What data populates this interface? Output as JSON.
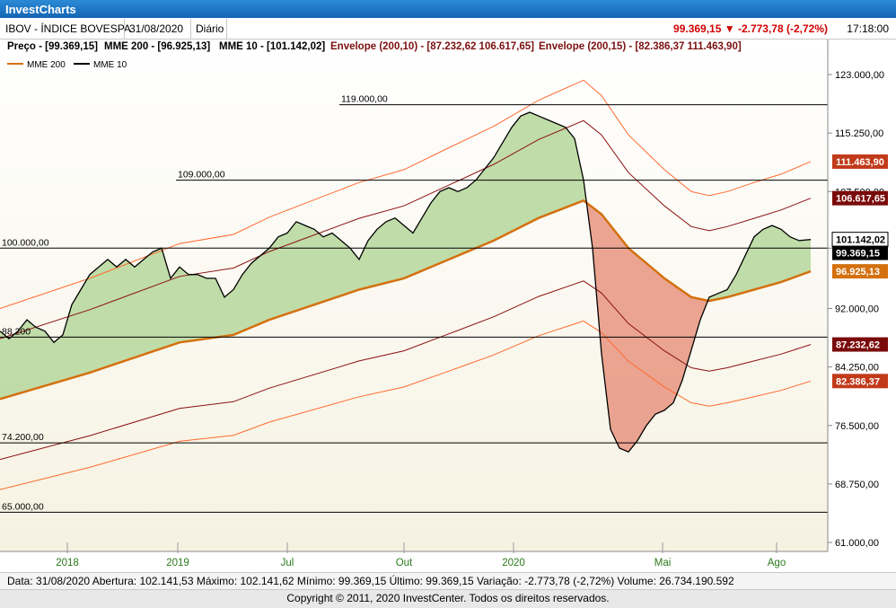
{
  "app": {
    "title": "InvestCharts"
  },
  "header": {
    "symbol": "IBOV - ÍNDICE BOVESPA",
    "date": "31/08/2020",
    "period": "Diário",
    "quote": "99.369,15 ▼ -2.773,78 (-2,72%)",
    "time": "17:18:00"
  },
  "indicators_line": {
    "price": "Preço - [99.369,15]",
    "mme200": "MME 200 - [96.925,13]",
    "mme10": "MME 10 - [101.142,02]",
    "env10": "Envelope (200,10) - [87.232,62  106.617,65]",
    "env15": "Envelope (200,15) - [82.386,37  111.463,90]"
  },
  "legend": {
    "mme200": "MME 200",
    "mme10": "MME 10"
  },
  "statusbar": {
    "text": "Data: 31/08/2020  Abertura: 102.141,53  Máximo: 102.141,62  Mínimo: 99.369,15  Último: 99.369,15  Variação: -2.773,78 (-2,72%)  Volume: 26.734.190.592"
  },
  "footer": {
    "text": "Copyright © 2011, 2020  InvestCenter. Todos os direitos reservados."
  },
  "colors": {
    "mme200": "#d4700e",
    "mme10": "#000000",
    "env10": "#8b1010",
    "env15": "#ff6a2e",
    "fill_up": "#b9d8a0",
    "fill_down": "#e89a86",
    "price_badge": "#a01010",
    "accent_badge": "#d4700e"
  },
  "chart_data": {
    "type": "line",
    "title": "",
    "x_ticks": [
      "2018",
      "2019",
      "Jul",
      "Out",
      "2020",
      "Mai",
      "Ago"
    ],
    "y_ticks": [
      "123.000,00",
      "115.250,00",
      "107.500,00",
      "100.000,00",
      "92.000,00",
      "84.250,00",
      "76.500,00",
      "68.750,00",
      "61.000,00"
    ],
    "ylim": [
      61000,
      123000
    ],
    "horizontal_lines": [
      {
        "value": 119000,
        "label": "119.000,00"
      },
      {
        "value": 109000,
        "label": "109.000,00"
      },
      {
        "value": 100000,
        "label": "100.000,00"
      },
      {
        "value": 88200,
        "label": "88.200"
      },
      {
        "value": 74200,
        "label": "74.200,00"
      },
      {
        "value": 65000,
        "label": "65.000,00"
      }
    ],
    "right_labels": [
      {
        "value": 111463.9,
        "text": "111.463,90",
        "kind": "env15"
      },
      {
        "value": 106617.65,
        "text": "106.617,65",
        "kind": "env10"
      },
      {
        "value": 101142.02,
        "text": "101.142,02",
        "kind": "mme10"
      },
      {
        "value": 99369.15,
        "text": "99.369,15",
        "kind": "price"
      },
      {
        "value": 96925.13,
        "text": "96.925,13",
        "kind": "mme200"
      },
      {
        "value": 87232.62,
        "text": "87.232,62",
        "kind": "env10"
      },
      {
        "value": 82386.37,
        "text": "82.386,37",
        "kind": "env15"
      }
    ],
    "series": [
      {
        "name": "MME 10",
        "values": [
          [
            0,
            89000
          ],
          [
            10,
            88000
          ],
          [
            20,
            89000
          ],
          [
            30,
            90500
          ],
          [
            40,
            89500
          ],
          [
            50,
            89000
          ],
          [
            60,
            87500
          ],
          [
            70,
            88500
          ],
          [
            80,
            92500
          ],
          [
            90,
            94500
          ],
          [
            100,
            96500
          ],
          [
            110,
            97500
          ],
          [
            120,
            98500
          ],
          [
            130,
            97500
          ],
          [
            140,
            98500
          ],
          [
            150,
            97500
          ],
          [
            160,
            98500
          ],
          [
            170,
            99500
          ],
          [
            180,
            100000
          ],
          [
            190,
            96000
          ],
          [
            200,
            97500
          ],
          [
            210,
            96500
          ],
          [
            220,
            96500
          ],
          [
            230,
            96000
          ],
          [
            240,
            96000
          ],
          [
            250,
            93500
          ],
          [
            260,
            94500
          ],
          [
            270,
            96500
          ],
          [
            280,
            98000
          ],
          [
            290,
            99000
          ],
          [
            300,
            100000
          ],
          [
            310,
            101500
          ],
          [
            320,
            102000
          ],
          [
            330,
            103500
          ],
          [
            340,
            103000
          ],
          [
            350,
            102500
          ],
          [
            360,
            101500
          ],
          [
            370,
            102000
          ],
          [
            380,
            101000
          ],
          [
            390,
            100000
          ],
          [
            400,
            98500
          ],
          [
            410,
            101000
          ],
          [
            420,
            102500
          ],
          [
            430,
            103500
          ],
          [
            440,
            104000
          ],
          [
            450,
            103000
          ],
          [
            460,
            102000
          ],
          [
            470,
            104000
          ],
          [
            480,
            106000
          ],
          [
            490,
            107500
          ],
          [
            500,
            108000
          ],
          [
            510,
            107500
          ],
          [
            520,
            108000
          ],
          [
            530,
            109000
          ],
          [
            540,
            110500
          ],
          [
            550,
            112000
          ],
          [
            560,
            114000
          ],
          [
            570,
            116000
          ],
          [
            580,
            117500
          ],
          [
            590,
            118000
          ],
          [
            600,
            117500
          ],
          [
            610,
            117000
          ],
          [
            620,
            116500
          ],
          [
            630,
            116000
          ],
          [
            640,
            114500
          ],
          [
            650,
            109000
          ],
          [
            660,
            100000
          ],
          [
            670,
            86000
          ],
          [
            680,
            76000
          ],
          [
            690,
            73500
          ],
          [
            700,
            73000
          ],
          [
            710,
            74500
          ],
          [
            720,
            76500
          ],
          [
            730,
            78000
          ],
          [
            740,
            78500
          ],
          [
            750,
            79500
          ],
          [
            760,
            82500
          ],
          [
            770,
            86500
          ],
          [
            780,
            90500
          ],
          [
            790,
            93500
          ],
          [
            800,
            94000
          ],
          [
            810,
            94500
          ],
          [
            820,
            96500
          ],
          [
            830,
            99000
          ],
          [
            840,
            101500
          ],
          [
            850,
            102500
          ],
          [
            860,
            103000
          ],
          [
            870,
            102500
          ],
          [
            880,
            101500
          ],
          [
            890,
            101000
          ],
          [
            903,
            101142
          ]
        ]
      },
      {
        "name": "MME 200",
        "values": [
          [
            0,
            80000
          ],
          [
            100,
            83500
          ],
          [
            200,
            87500
          ],
          [
            260,
            88500
          ],
          [
            300,
            90500
          ],
          [
            400,
            94500
          ],
          [
            450,
            96000
          ],
          [
            500,
            98500
          ],
          [
            550,
            101000
          ],
          [
            600,
            104000
          ],
          [
            650,
            106300
          ],
          [
            670,
            104500
          ],
          [
            700,
            100000
          ],
          [
            740,
            96000
          ],
          [
            770,
            93500
          ],
          [
            790,
            93000
          ],
          [
            810,
            93500
          ],
          [
            840,
            94500
          ],
          [
            870,
            95500
          ],
          [
            903,
            96925
          ]
        ]
      },
      {
        "name": "Envelope 10 sup",
        "values": [
          [
            0,
            88000
          ],
          [
            100,
            91850
          ],
          [
            200,
            96250
          ],
          [
            260,
            97350
          ],
          [
            300,
            99550
          ],
          [
            400,
            103950
          ],
          [
            450,
            105600
          ],
          [
            500,
            108350
          ],
          [
            550,
            111100
          ],
          [
            600,
            114400
          ],
          [
            650,
            116900
          ],
          [
            670,
            115000
          ],
          [
            700,
            110000
          ],
          [
            740,
            105600
          ],
          [
            770,
            102850
          ],
          [
            790,
            102300
          ],
          [
            810,
            102850
          ],
          [
            840,
            103950
          ],
          [
            870,
            105050
          ],
          [
            903,
            106617
          ]
        ]
      },
      {
        "name": "Envelope 10 inf",
        "values": [
          [
            0,
            72000
          ],
          [
            100,
            75150
          ],
          [
            200,
            78750
          ],
          [
            260,
            79650
          ],
          [
            300,
            81450
          ],
          [
            400,
            85050
          ],
          [
            450,
            86400
          ],
          [
            500,
            88650
          ],
          [
            550,
            90900
          ],
          [
            600,
            93600
          ],
          [
            650,
            95650
          ],
          [
            670,
            94050
          ],
          [
            700,
            90000
          ],
          [
            740,
            86400
          ],
          [
            770,
            84150
          ],
          [
            790,
            83700
          ],
          [
            810,
            84150
          ],
          [
            840,
            85050
          ],
          [
            870,
            85950
          ],
          [
            903,
            87232
          ]
        ]
      },
      {
        "name": "Envelope 15 sup",
        "values": [
          [
            0,
            92000
          ],
          [
            100,
            96000
          ],
          [
            200,
            100600
          ],
          [
            260,
            101800
          ],
          [
            300,
            104100
          ],
          [
            400,
            108700
          ],
          [
            450,
            110400
          ],
          [
            500,
            113300
          ],
          [
            550,
            116150
          ],
          [
            600,
            119600
          ],
          [
            650,
            122250
          ],
          [
            670,
            120200
          ],
          [
            700,
            115000
          ],
          [
            740,
            110400
          ],
          [
            770,
            107500
          ],
          [
            790,
            106950
          ],
          [
            810,
            107500
          ],
          [
            840,
            108700
          ],
          [
            870,
            109800
          ],
          [
            903,
            111464
          ]
        ]
      },
      {
        "name": "Envelope 15 inf",
        "values": [
          [
            0,
            68000
          ],
          [
            100,
            70950
          ],
          [
            200,
            74400
          ],
          [
            260,
            75200
          ],
          [
            300,
            76950
          ],
          [
            400,
            80300
          ],
          [
            450,
            81600
          ],
          [
            500,
            83700
          ],
          [
            550,
            85850
          ],
          [
            600,
            88400
          ],
          [
            650,
            90350
          ],
          [
            670,
            88800
          ],
          [
            700,
            85000
          ],
          [
            740,
            81600
          ],
          [
            770,
            79500
          ],
          [
            790,
            79050
          ],
          [
            810,
            79500
          ],
          [
            840,
            80300
          ],
          [
            870,
            81150
          ],
          [
            903,
            82386
          ]
        ]
      }
    ]
  }
}
